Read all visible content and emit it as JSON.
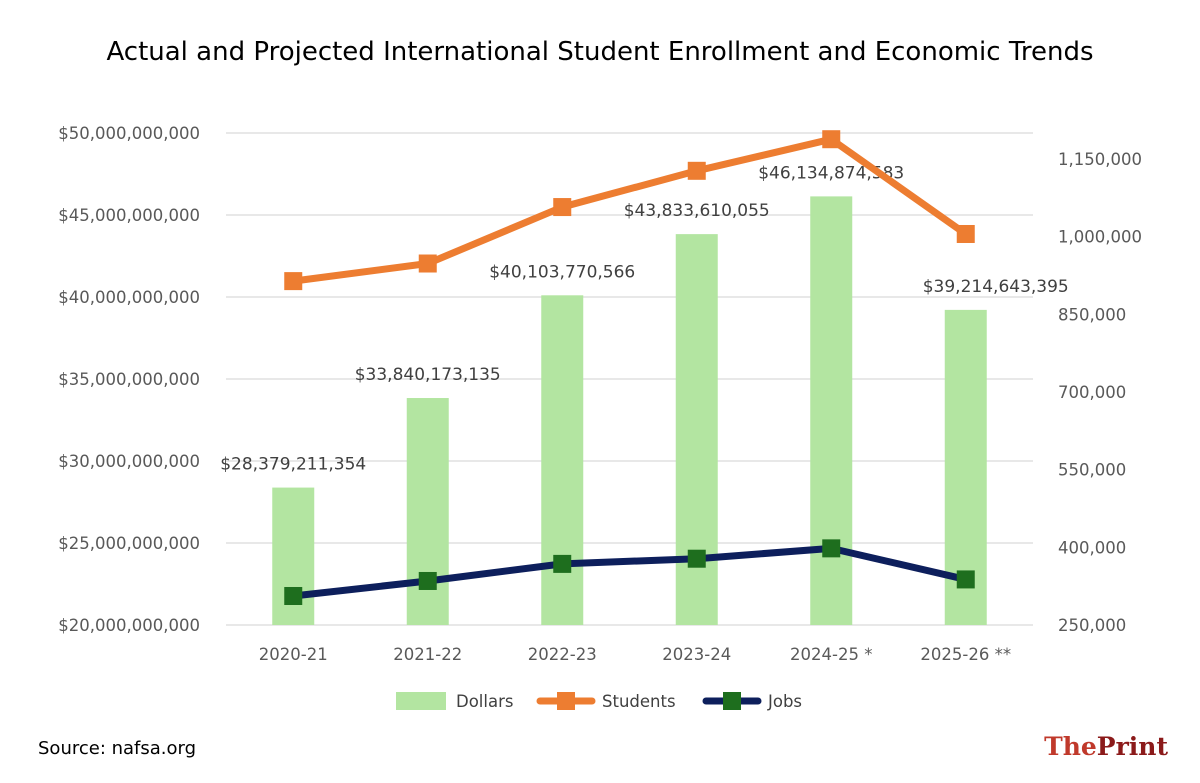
{
  "chart_data": {
    "type": "bar",
    "title": "Actual and Projected International Student Enrollment and Economic Trends",
    "categories": [
      "2020-21",
      "2021-22",
      "2022-23",
      "2023-24",
      "2024-25 *",
      "2025-26 **"
    ],
    "y_left": {
      "range": [
        20000000000,
        50000000000
      ],
      "ticks": [
        20000000000,
        25000000000,
        30000000000,
        35000000000,
        40000000000,
        45000000000,
        50000000000
      ],
      "tick_labels": [
        "$20,000,000,000",
        "$25,000,000,000",
        "$30,000,000,000",
        "$35,000,000,000",
        "$40,000,000,000",
        "$45,000,000,000",
        "$50,000,000,000"
      ],
      "grid": true
    },
    "y_right": {
      "range": [
        250000,
        1200000
      ],
      "ticks": [
        250000,
        400000,
        550000,
        700000,
        850000,
        1000000,
        1150000
      ],
      "tick_labels": [
        "250,000",
        "400,000",
        "550,000",
        "700,000",
        "850,000",
        "1,000,000",
        "1,150,000"
      ]
    },
    "series": [
      {
        "name": "Dollars",
        "type": "bar",
        "axis": "left",
        "color": "#b3e5a1",
        "values": [
          28379211354,
          33840173135,
          40103770566,
          43833610055,
          46134874583,
          39214643395
        ],
        "labels": [
          "$28,379,211,354",
          "$33,840,173,135",
          "$40,103,770,566",
          "$43,833,610,055",
          "$46,134,874,583",
          "$39,214,643,395"
        ]
      },
      {
        "name": "Students",
        "type": "line",
        "axis": "right",
        "color": "#ed7d31",
        "marker_color": "#ed7d31",
        "values": [
          914000,
          948000,
          1057000,
          1127000,
          1188000,
          1005000
        ]
      },
      {
        "name": "Jobs",
        "type": "line",
        "axis": "right",
        "color": "#0d1f5c",
        "marker_color": "#1e6e1e",
        "values": [
          306000,
          335000,
          368000,
          378000,
          398000,
          338000
        ]
      }
    ],
    "legend": [
      "Dollars",
      "Students",
      "Jobs"
    ],
    "legend_position": "bottom"
  },
  "source": "Source: nafsa.org",
  "logo": {
    "the": "The",
    "print": "Print",
    "color_the": "#c0392b",
    "color_print": "#8b1a1a"
  }
}
